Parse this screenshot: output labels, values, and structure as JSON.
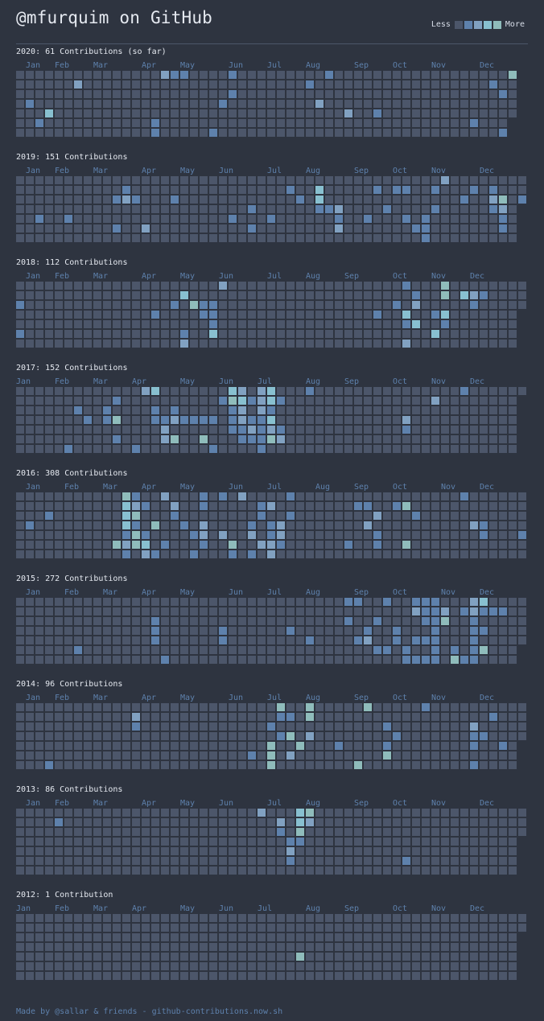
{
  "header": {
    "title": "@mfurquim on GitHub",
    "legend_less": "Less",
    "legend_more": "More"
  },
  "palette": [
    "#4c566a",
    "#5e81ac",
    "#81a1c1",
    "#88c0d0",
    "#8fbcbb"
  ],
  "months": [
    "Jan",
    "Feb",
    "Mar",
    "Apr",
    "May",
    "Jun",
    "Jul",
    "Aug",
    "Sep",
    "Oct",
    "Nov",
    "Dec"
  ],
  "years": [
    {
      "label": "2020: 61 Contributions (so far)",
      "weeks": 52,
      "first_weekday": 3,
      "last_weekday": 4,
      "active": {
        "15-0": 2,
        "16-0": 1,
        "17-0": 1,
        "22-0": 1,
        "32-0": 1,
        "51-0": 4,
        "6-1": 2,
        "30-1": 1,
        "49-1": 1,
        "22-2": 1,
        "50-2": 1,
        "1-3": 1,
        "21-3": 1,
        "31-3": 2,
        "3-4": 3,
        "34-4": 2,
        "37-4": 1,
        "2-5": 1,
        "14-5": 1,
        "47-5": 1,
        "14-6": 1,
        "20-6": 1,
        "50-6": 1
      }
    },
    {
      "label": "2019: 151 Contributions",
      "weeks": 53,
      "first_weekday": 2,
      "last_weekday": 2,
      "active": {
        "44-0": 2,
        "11-1": 1,
        "28-1": 1,
        "31-1": 3,
        "37-1": 1,
        "39-1": 1,
        "40-1": 1,
        "43-1": 1,
        "47-1": 1,
        "49-1": 1,
        "10-2": 1,
        "11-2": 2,
        "12-2": 1,
        "16-2": 1,
        "29-2": 1,
        "31-2": 3,
        "46-2": 1,
        "49-2": 2,
        "50-2": 4,
        "52-2": 1,
        "24-3": 1,
        "31-3": 1,
        "32-3": 1,
        "33-3": 2,
        "38-3": 1,
        "43-3": 1,
        "49-3": 1,
        "50-3": 2,
        "2-4": 1,
        "5-4": 1,
        "22-4": 1,
        "26-4": 1,
        "33-4": 1,
        "36-4": 1,
        "40-4": 1,
        "42-4": 1,
        "50-4": 1,
        "10-5": 1,
        "13-5": 2,
        "24-5": 1,
        "33-5": 2,
        "41-5": 1,
        "42-5": 1,
        "50-5": 1,
        "42-6": 1
      }
    },
    {
      "label": "2018: 112 Contributions",
      "weeks": 53,
      "first_weekday": 1,
      "last_weekday": 2,
      "active": {
        "21-0": 2,
        "40-0": 1,
        "44-0": 4,
        "17-1": 3,
        "41-1": 1,
        "44-1": 4,
        "46-1": 3,
        "47-1": 2,
        "48-1": 1,
        "0-2": 1,
        "16-2": 1,
        "18-2": 4,
        "19-2": 1,
        "20-2": 1,
        "39-2": 1,
        "41-2": 2,
        "47-2": 1,
        "14-3": 1,
        "19-3": 1,
        "20-3": 1,
        "37-3": 1,
        "40-3": 3,
        "43-3": 1,
        "44-3": 3,
        "20-4": 1,
        "40-4": 1,
        "41-4": 3,
        "44-4": 1,
        "0-5": 1,
        "17-5": 1,
        "20-5": 3,
        "43-5": 3,
        "17-6": 2,
        "40-6": 2
      }
    },
    {
      "label": "2017: 152 Contributions",
      "weeks": 53,
      "first_weekday": 0,
      "last_weekday": 0,
      "active": {
        "13-0": 2,
        "14-0": 3,
        "22-0": 3,
        "23-0": 2,
        "25-0": 2,
        "26-0": 3,
        "30-0": 1,
        "46-0": 1,
        "10-1": 1,
        "21-1": 1,
        "22-1": 4,
        "23-1": 3,
        "24-1": 1,
        "25-1": 2,
        "26-1": 3,
        "27-1": 1,
        "43-1": 2,
        "6-2": 1,
        "9-2": 1,
        "14-2": 1,
        "16-2": 1,
        "22-2": 1,
        "23-2": 2,
        "25-2": 2,
        "26-2": 1,
        "7-3": 1,
        "9-3": 1,
        "10-3": 4,
        "14-3": 1,
        "15-3": 1,
        "16-3": 2,
        "17-3": 1,
        "18-3": 1,
        "19-3": 1,
        "20-3": 1,
        "22-3": 1,
        "23-3": 2,
        "24-3": 1,
        "25-3": 1,
        "26-3": 3,
        "40-3": 2,
        "15-4": 2,
        "22-4": 1,
        "23-4": 1,
        "24-4": 2,
        "25-4": 1,
        "26-4": 2,
        "27-4": 1,
        "40-4": 1,
        "10-5": 1,
        "15-5": 2,
        "16-5": 4,
        "19-5": 4,
        "23-5": 1,
        "24-5": 1,
        "25-5": 1,
        "26-5": 4,
        "27-5": 2,
        "5-6": 1,
        "12-6": 1,
        "20-6": 1,
        "25-6": 1
      }
    },
    {
      "label": "2016: 308 Contributions",
      "weeks": 53,
      "first_weekday": 5,
      "last_weekday": 6,
      "active": {
        "11-0": 4,
        "12-0": 1,
        "15-0": 2,
        "19-0": 1,
        "21-0": 1,
        "23-0": 2,
        "28-0": 1,
        "46-0": 1,
        "11-1": 3,
        "12-1": 2,
        "13-1": 1,
        "16-1": 2,
        "19-1": 1,
        "25-1": 1,
        "26-1": 2,
        "35-1": 1,
        "36-1": 1,
        "39-1": 1,
        "40-1": 4,
        "3-2": 1,
        "11-2": 3,
        "12-2": 4,
        "16-2": 1,
        "25-2": 1,
        "28-2": 1,
        "37-2": 2,
        "41-2": 1,
        "1-3": 1,
        "11-3": 3,
        "12-3": 1,
        "14-3": 4,
        "17-3": 1,
        "19-3": 2,
        "24-3": 1,
        "26-3": 1,
        "27-3": 2,
        "36-3": 2,
        "47-3": 2,
        "48-3": 1,
        "11-4": 1,
        "12-4": 4,
        "13-4": 1,
        "18-4": 1,
        "19-4": 2,
        "21-4": 2,
        "24-4": 2,
        "26-4": 1,
        "27-4": 2,
        "37-4": 1,
        "48-4": 1,
        "52-4": 1,
        "10-5": 4,
        "11-5": 2,
        "12-5": 4,
        "13-5": 3,
        "15-5": 1,
        "19-5": 1,
        "22-5": 4,
        "25-5": 2,
        "26-5": 2,
        "27-5": 1,
        "34-5": 1,
        "37-5": 1,
        "40-5": 4,
        "11-6": 1,
        "13-6": 2,
        "14-6": 1,
        "18-6": 1,
        "22-6": 1,
        "24-6": 1,
        "26-6": 2
      }
    },
    {
      "label": "2015: 272 Contributions",
      "weeks": 53,
      "first_weekday": 4,
      "last_weekday": 4,
      "active": {
        "34-0": 1,
        "35-0": 1,
        "38-0": 1,
        "41-0": 1,
        "42-0": 1,
        "43-0": 1,
        "47-0": 2,
        "48-0": 3,
        "41-1": 2,
        "42-1": 1,
        "43-1": 1,
        "44-1": 2,
        "46-1": 1,
        "47-1": 2,
        "48-1": 1,
        "49-1": 1,
        "50-1": 1,
        "14-2": 1,
        "34-2": 1,
        "37-2": 1,
        "42-2": 1,
        "43-2": 1,
        "44-2": 4,
        "47-2": 1,
        "14-3": 1,
        "21-3": 1,
        "28-3": 1,
        "36-3": 1,
        "39-3": 1,
        "43-3": 1,
        "47-3": 1,
        "48-3": 1,
        "14-4": 1,
        "21-4": 1,
        "30-4": 1,
        "35-4": 1,
        "36-4": 2,
        "39-4": 1,
        "41-4": 1,
        "42-4": 1,
        "43-4": 1,
        "47-4": 1,
        "6-5": 1,
        "37-5": 1,
        "38-5": 1,
        "40-5": 1,
        "43-5": 1,
        "45-5": 1,
        "47-5": 1,
        "48-5": 4,
        "15-6": 1,
        "40-6": 1,
        "41-6": 1,
        "42-6": 1,
        "43-6": 1,
        "45-6": 4,
        "46-6": 1,
        "47-6": 1
      }
    },
    {
      "label": "2014: 96 Contributions",
      "weeks": 53,
      "first_weekday": 3,
      "last_weekday": 3,
      "active": {
        "27-0": 4,
        "30-0": 4,
        "36-0": 4,
        "42-0": 1,
        "12-1": 2,
        "27-1": 1,
        "28-1": 1,
        "30-1": 4,
        "49-1": 1,
        "12-2": 1,
        "26-2": 1,
        "38-2": 1,
        "47-2": 2,
        "27-3": 1,
        "28-3": 4,
        "30-3": 2,
        "39-3": 1,
        "47-3": 1,
        "48-3": 1,
        "26-4": 4,
        "29-4": 4,
        "33-4": 1,
        "38-4": 1,
        "47-4": 1,
        "50-4": 1,
        "24-5": 1,
        "26-5": 4,
        "28-5": 2,
        "38-5": 4,
        "3-6": 1,
        "26-6": 4,
        "35-6": 4,
        "47-6": 1
      }
    },
    {
      "label": "2013: 86 Contributions",
      "weeks": 53,
      "first_weekday": 2,
      "last_weekday": 2,
      "active": {
        "25-0": 2,
        "29-0": 3,
        "30-0": 4,
        "4-1": 1,
        "27-1": 2,
        "29-1": 3,
        "30-1": 2,
        "27-2": 1,
        "29-2": 4,
        "28-3": 1,
        "29-3": 1,
        "28-4": 2,
        "28-5": 1,
        "40-5": 1
      }
    },
    {
      "label": "2012: 1 Contribution",
      "weeks": 53,
      "first_weekday": 0,
      "last_weekday": 1,
      "active": {
        "29-4": 4
      }
    }
  ],
  "footer": {
    "text": "Made by @sallar & friends - github-contributions.now.sh"
  }
}
